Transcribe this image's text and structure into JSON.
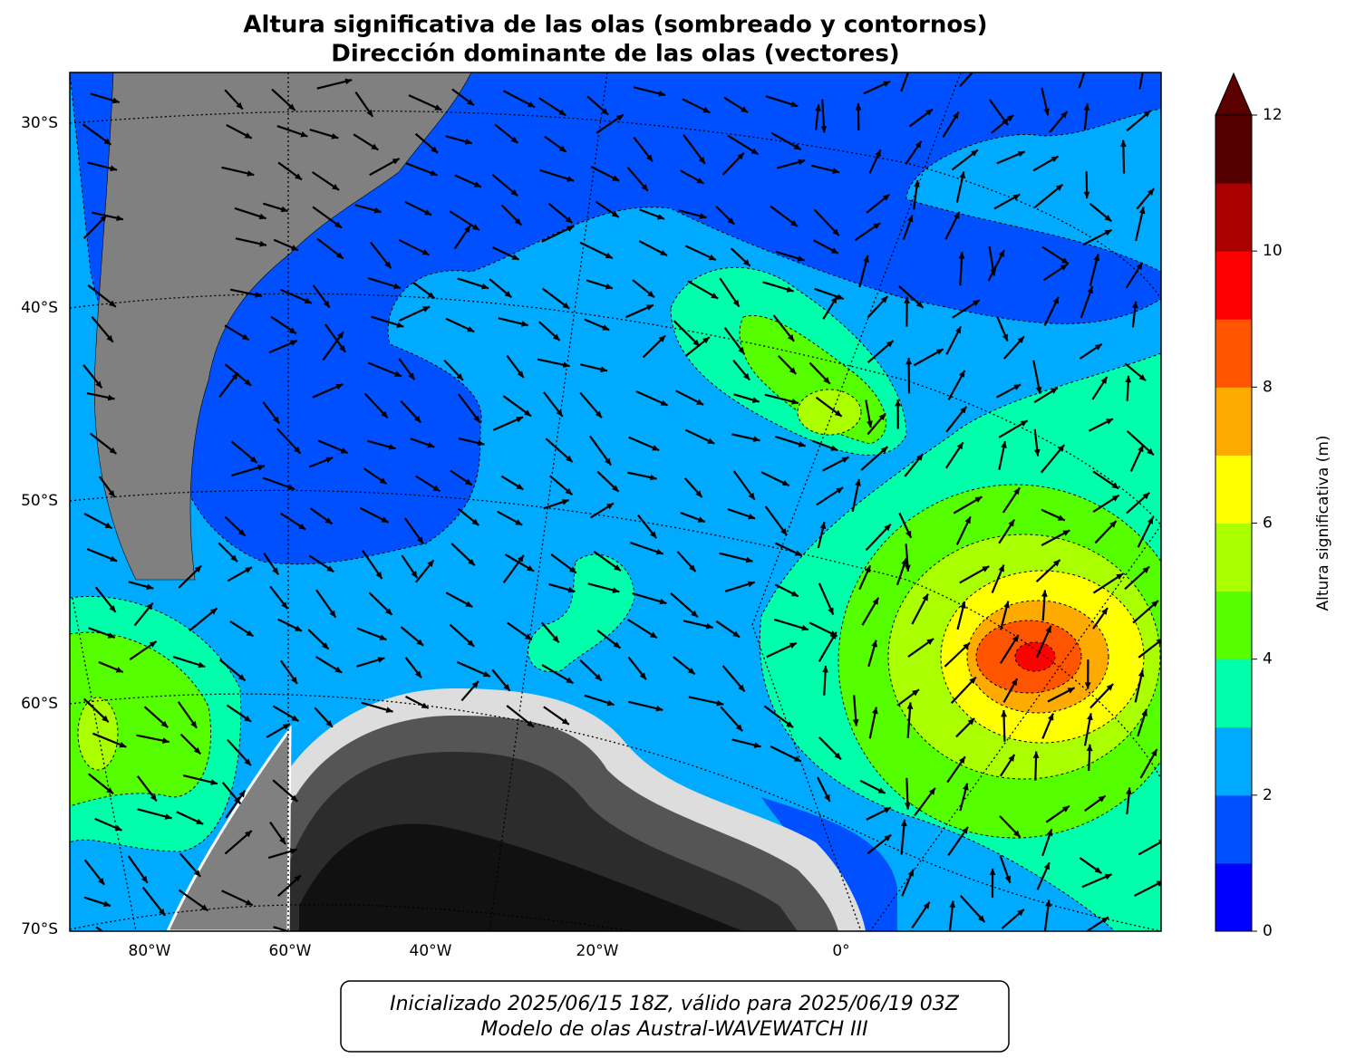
{
  "title": [
    "Altura significativa de las olas (sombreado y contornos)",
    "Dirección dominante de las olas (vectores)"
  ],
  "map": {
    "lat_labels": [
      "30°S",
      "40°S",
      "50°S",
      "60°S",
      "70°S"
    ],
    "lon_labels": [
      "80°W",
      "60°W",
      "40°W",
      "20°W",
      "0°"
    ]
  },
  "colorbar": {
    "label": "Altura significativa (m)",
    "levels": [
      0,
      1,
      2,
      3,
      4,
      5,
      6,
      7,
      8,
      9,
      10,
      11,
      12
    ],
    "colors": [
      "#0000ff",
      "#0050ff",
      "#00aaff",
      "#00ffaa",
      "#55ff00",
      "#aaff00",
      "#ffff00",
      "#ffaa00",
      "#ff5500",
      "#ff0000",
      "#aa0000",
      "#550000"
    ],
    "extend_color": "#5a0000",
    "ticks": [
      0,
      2,
      4,
      6,
      8,
      10,
      12
    ]
  },
  "footer": [
    "Inicializado 2025/06/15 18Z, válido para 2025/06/19 03Z",
    "Modelo de olas Austral-WAVEWATCH III"
  ]
}
